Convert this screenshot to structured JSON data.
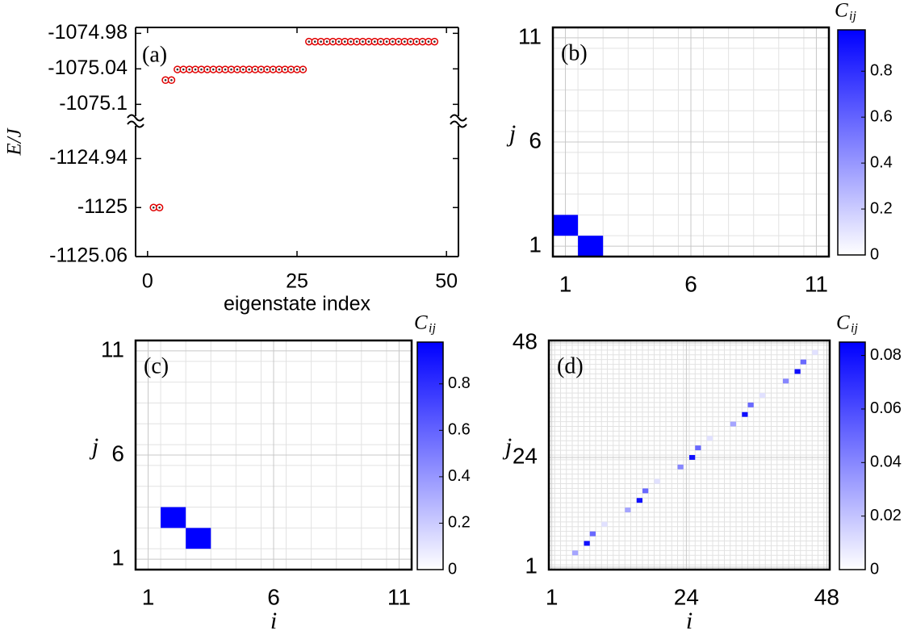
{
  "chart_data": [
    {
      "type": "scatter",
      "annotation": "(a)",
      "x_label": "eigenstate index",
      "y_label": "E/J",
      "x": [
        1,
        2,
        3,
        4,
        5,
        6,
        7,
        8,
        9,
        10,
        11,
        12,
        13,
        14,
        15,
        16,
        17,
        18,
        19,
        20,
        21,
        22,
        23,
        24,
        25,
        26,
        27,
        28,
        29,
        30,
        31,
        32,
        33,
        34,
        35,
        36,
        37,
        38,
        39,
        40,
        41,
        42,
        43,
        44,
        45,
        46,
        47,
        48
      ],
      "values": [
        -1125,
        -1125,
        -1075.059,
        -1075.059,
        -1075.041,
        -1075.041,
        -1075.041,
        -1075.041,
        -1075.041,
        -1075.041,
        -1075.041,
        -1075.041,
        -1075.041,
        -1075.041,
        -1075.041,
        -1075.041,
        -1075.041,
        -1075.041,
        -1075.041,
        -1075.041,
        -1075.041,
        -1075.041,
        -1075.041,
        -1075.041,
        -1075.041,
        -1075.041,
        -1074.994,
        -1074.994,
        -1074.994,
        -1074.994,
        -1074.994,
        -1074.994,
        -1074.994,
        -1074.994,
        -1074.994,
        -1074.994,
        -1074.994,
        -1074.994,
        -1074.994,
        -1074.994,
        -1074.994,
        -1074.994,
        -1074.994,
        -1074.994,
        -1074.994,
        -1074.994,
        -1074.994,
        -1074.994
      ],
      "color": "#e00000",
      "xlim": [
        -2,
        52
      ],
      "xticks": [
        0,
        25,
        50
      ],
      "ylims": [
        [
          -1125.06,
          -1124.9
        ],
        [
          -1075.12,
          -1074.97
        ]
      ],
      "yticks": [
        -1125.06,
        -1125,
        -1124.94,
        -1075.1,
        -1075.04,
        -1074.98
      ]
    },
    {
      "type": "heatmap",
      "annotation": "(b)",
      "y_label": "j",
      "colorbar_label": "C",
      "colorbar_label_sub": "ij",
      "x": [
        1,
        2
      ],
      "y": [
        2,
        1
      ],
      "values": [
        0.98,
        0.98
      ],
      "xlim": [
        0.5,
        11.5
      ],
      "ylim": [
        0.5,
        11.5
      ],
      "xticks": [
        1,
        6,
        11
      ],
      "yticks": [
        1,
        6,
        11
      ],
      "clim": [
        0,
        0.98
      ],
      "cticks": [
        0,
        0.2,
        0.4,
        0.6,
        0.8
      ],
      "colormap": [
        "#ffffff",
        "#0000ff"
      ]
    },
    {
      "type": "heatmap",
      "annotation": "(c)",
      "x_label": "i",
      "y_label": "j",
      "colorbar_label": "C",
      "colorbar_label_sub": "ij",
      "x": [
        2,
        3
      ],
      "y": [
        3,
        2
      ],
      "values": [
        0.98,
        0.98
      ],
      "xlim": [
        0.5,
        11.5
      ],
      "ylim": [
        0.5,
        11.5
      ],
      "xticks": [
        1,
        6,
        11
      ],
      "yticks": [
        1,
        6,
        11
      ],
      "clim": [
        0,
        0.98
      ],
      "cticks": [
        0,
        0.2,
        0.4,
        0.6,
        0.8
      ],
      "colormap": [
        "#ffffff",
        "#0000ff"
      ]
    },
    {
      "type": "heatmap",
      "annotation": "(d)",
      "x_label": "i",
      "y_label": "j",
      "colorbar_label": "C",
      "colorbar_label_sub": "ij",
      "x": [
        5,
        7,
        8,
        10,
        14,
        16,
        17,
        19,
        23,
        25,
        26,
        28,
        32,
        34,
        35,
        37,
        41,
        43,
        44,
        46
      ],
      "y": [
        4,
        6,
        8,
        10,
        13,
        15,
        17,
        19,
        22,
        24,
        26,
        28,
        31,
        33,
        35,
        37,
        40,
        42,
        44,
        46
      ],
      "values": [
        0.03,
        0.08,
        0.05,
        0.01,
        0.03,
        0.08,
        0.05,
        0.01,
        0.04,
        0.08,
        0.05,
        0.01,
        0.03,
        0.08,
        0.05,
        0.01,
        0.04,
        0.08,
        0.05,
        0.01
      ],
      "xlim": [
        0.5,
        48.5
      ],
      "ylim": [
        0.5,
        48.5
      ],
      "xticks": [
        1,
        24,
        48
      ],
      "yticks": [
        1,
        24,
        48
      ],
      "clim": [
        0,
        0.085
      ],
      "cticks": [
        0,
        0.02,
        0.04,
        0.06,
        0.08
      ],
      "colormap": [
        "#ffffff",
        "#0000ff"
      ]
    }
  ]
}
